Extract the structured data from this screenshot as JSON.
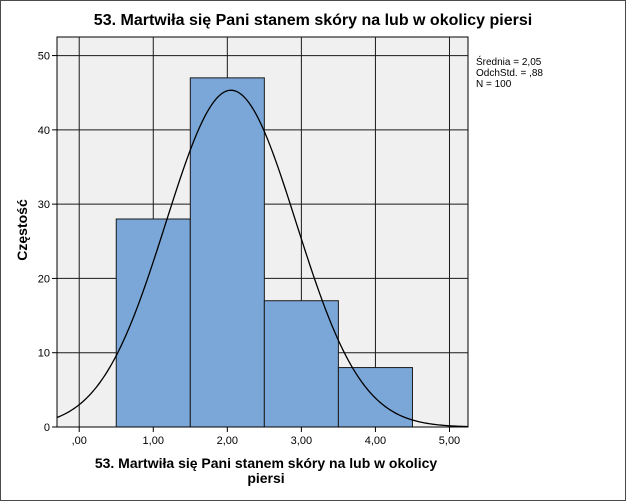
{
  "chart_data": {
    "type": "bar",
    "title": "53. Martwiła się Pani stanem skóry na lub w okolicy piersi",
    "xlabel": "53. Martwiła się Pani stanem skóry na lub w okolicy piersi",
    "ylabel": "Częstość",
    "x_tick_labels": [
      ",00",
      "1,00",
      "2,00",
      "3,00",
      "4,00",
      "5,00"
    ],
    "x_ticks": [
      0,
      1,
      2,
      3,
      4,
      5
    ],
    "y_ticks": [
      0,
      10,
      20,
      30,
      40,
      50
    ],
    "xlim": [
      -0.3,
      5.25
    ],
    "ylim": [
      0,
      52.5
    ],
    "grid": true,
    "bins": [
      {
        "start": 0.5,
        "end": 1.5,
        "value": 28
      },
      {
        "start": 1.5,
        "end": 2.5,
        "value": 47
      },
      {
        "start": 2.5,
        "end": 3.5,
        "value": 17
      },
      {
        "start": 3.5,
        "end": 4.5,
        "value": 8
      }
    ],
    "normal_curve": {
      "mean": 2.05,
      "sd": 0.88,
      "n": 100,
      "bin_width": 1
    },
    "stats_lines": [
      "Średnia = 2,05",
      "OdchStd. = ,88",
      "N = 100"
    ],
    "colors": {
      "bar_fill": "#7aa7d8",
      "bar_stroke": "#1a1a1a",
      "plot_bg": "#f0f0f0",
      "grid": "#1a1a1a",
      "curve": "#000000"
    }
  }
}
